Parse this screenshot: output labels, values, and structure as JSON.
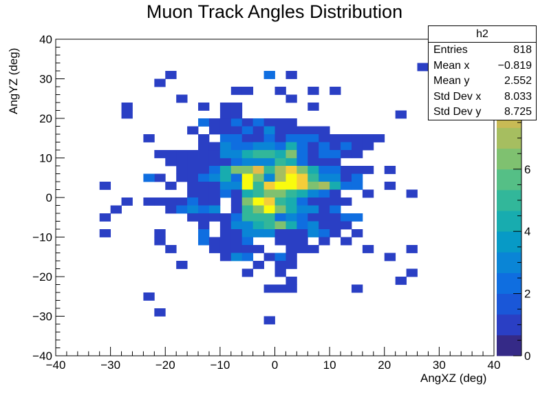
{
  "title": "Muon Track Angles Distribution",
  "stats": {
    "name": "h2",
    "rows": [
      {
        "label": "Entries",
        "value": "818"
      },
      {
        "label": "Mean x",
        "value": "−0.819"
      },
      {
        "label": "Mean y",
        "value": "2.552"
      },
      {
        "label": "Std Dev x",
        "value": "8.033"
      },
      {
        "label": "Std Dev y",
        "value": "8.725"
      }
    ]
  },
  "chart_data": {
    "type": "heatmap",
    "title": "Muon Track Angles Distribution",
    "xlabel": "AngXZ (deg)",
    "ylabel": "AngYZ (deg)",
    "xlim": [
      -40,
      40
    ],
    "ylim": [
      -40,
      40
    ],
    "bin_width": 2,
    "x_ticks": [
      -40,
      -30,
      -20,
      -10,
      0,
      10,
      20,
      30,
      40
    ],
    "y_ticks": [
      -40,
      -30,
      -20,
      -10,
      0,
      10,
      20,
      30,
      40
    ],
    "x_tick_labels": [
      "−40",
      "−30",
      "−20",
      "−10",
      "0",
      "10",
      "20",
      "30",
      "40"
    ],
    "y_tick_labels": [
      "−40",
      "−30",
      "−20",
      "−10",
      "0",
      "10",
      "20",
      "30",
      "40"
    ],
    "z_range": [
      0,
      10
    ],
    "z_ticks": [
      0,
      2,
      4,
      6,
      8
    ],
    "z_tick_labels": [
      "0",
      "2",
      "4",
      "6",
      "8"
    ],
    "palette": [
      "#352a87",
      "#2a3fc4",
      "#1a57d8",
      "#0f6ee0",
      "#0a85d6",
      "#079ac6",
      "#18acaf",
      "#32b79a",
      "#55bf86",
      "#7fc170",
      "#a6be60",
      "#c8ba55",
      "#e4bb48",
      "#f5cd3a",
      "#f9fb0e"
    ],
    "cells": [
      [
        -21,
        29,
        1
      ],
      [
        -19,
        31,
        1
      ],
      [
        -27,
        23,
        1
      ],
      [
        -27,
        21,
        1
      ],
      [
        -27,
        -1,
        1
      ],
      [
        -29,
        -3,
        1
      ],
      [
        -31,
        -5,
        1
      ],
      [
        -31,
        -9,
        1
      ],
      [
        -23,
        15,
        1
      ],
      [
        -19,
        3,
        1
      ],
      [
        -21,
        5,
        1
      ],
      [
        -21,
        -9,
        1
      ],
      [
        -21,
        -11,
        1
      ],
      [
        -19,
        -13,
        1
      ],
      [
        -17,
        -17,
        1
      ],
      [
        -15,
        17,
        1
      ],
      [
        -13,
        15,
        1
      ],
      [
        -13,
        13,
        1
      ],
      [
        -11,
        13,
        1
      ],
      [
        -13,
        11,
        1
      ],
      [
        -11,
        11,
        1
      ],
      [
        -9,
        11,
        2
      ],
      [
        -15,
        11,
        1
      ],
      [
        -17,
        11,
        1
      ],
      [
        -17,
        9,
        1
      ],
      [
        -15,
        9,
        1
      ],
      [
        -13,
        9,
        1
      ],
      [
        -11,
        9,
        1
      ],
      [
        -9,
        9,
        1
      ],
      [
        -7,
        9,
        2
      ],
      [
        -5,
        9,
        3
      ],
      [
        -3,
        9,
        3
      ],
      [
        -1,
        9,
        3
      ],
      [
        1,
        9,
        5
      ],
      [
        3,
        9,
        4
      ],
      [
        5,
        9,
        2
      ],
      [
        7,
        9,
        1
      ],
      [
        9,
        9,
        1
      ],
      [
        11,
        9,
        1
      ],
      [
        -13,
        19,
        2
      ],
      [
        -11,
        19,
        1
      ],
      [
        -9,
        19,
        1
      ],
      [
        -7,
        19,
        2
      ],
      [
        -5,
        19,
        1
      ],
      [
        -3,
        19,
        2
      ],
      [
        -1,
        19,
        1
      ],
      [
        1,
        19,
        1
      ],
      [
        3,
        19,
        1
      ],
      [
        -11,
        17,
        1
      ],
      [
        -9,
        17,
        1
      ],
      [
        -7,
        17,
        1
      ],
      [
        -5,
        17,
        2
      ],
      [
        -3,
        17,
        1
      ],
      [
        -1,
        17,
        3
      ],
      [
        1,
        17,
        1
      ],
      [
        3,
        17,
        1
      ],
      [
        5,
        17,
        1
      ],
      [
        7,
        17,
        1
      ],
      [
        9,
        17,
        1
      ],
      [
        -9,
        15,
        2
      ],
      [
        -7,
        15,
        2
      ],
      [
        -5,
        15,
        1
      ],
      [
        -3,
        15,
        1
      ],
      [
        -1,
        15,
        2
      ],
      [
        1,
        15,
        1
      ],
      [
        3,
        15,
        2
      ],
      [
        5,
        15,
        2
      ],
      [
        7,
        15,
        2
      ],
      [
        9,
        15,
        1
      ],
      [
        11,
        15,
        1
      ],
      [
        13,
        15,
        1
      ],
      [
        15,
        15,
        1
      ],
      [
        17,
        15,
        1
      ],
      [
        19,
        15,
        1
      ],
      [
        -11,
        13,
        1
      ],
      [
        -9,
        13,
        3
      ],
      [
        -7,
        13,
        2
      ],
      [
        -5,
        13,
        2
      ],
      [
        -3,
        13,
        3
      ],
      [
        -1,
        13,
        3
      ],
      [
        1,
        13,
        2
      ],
      [
        3,
        13,
        4
      ],
      [
        5,
        13,
        2
      ],
      [
        7,
        13,
        1
      ],
      [
        9,
        13,
        2
      ],
      [
        11,
        13,
        1
      ],
      [
        13,
        13,
        2
      ],
      [
        15,
        13,
        1
      ],
      [
        17,
        13,
        1
      ],
      [
        -9,
        11,
        3
      ],
      [
        -7,
        11,
        3
      ],
      [
        -5,
        11,
        4
      ],
      [
        -3,
        11,
        5
      ],
      [
        -1,
        11,
        5
      ],
      [
        1,
        11,
        4
      ],
      [
        3,
        11,
        6
      ],
      [
        5,
        11,
        2
      ],
      [
        7,
        11,
        1
      ],
      [
        9,
        11,
        2
      ],
      [
        11,
        11,
        2
      ],
      [
        13,
        11,
        1
      ],
      [
        15,
        11,
        1
      ],
      [
        -19,
        9,
        1
      ],
      [
        -19,
        11,
        1
      ],
      [
        -21,
        11,
        1
      ],
      [
        -17,
        7,
        1
      ],
      [
        -15,
        7,
        1
      ],
      [
        -13,
        7,
        1
      ],
      [
        -11,
        7,
        2
      ],
      [
        -9,
        7,
        4
      ],
      [
        -7,
        7,
        6
      ],
      [
        -5,
        7,
        6
      ],
      [
        -3,
        7,
        8
      ],
      [
        -1,
        7,
        5
      ],
      [
        1,
        7,
        7
      ],
      [
        3,
        7,
        9
      ],
      [
        5,
        7,
        6
      ],
      [
        7,
        7,
        4
      ],
      [
        9,
        7,
        2
      ],
      [
        11,
        7,
        2
      ],
      [
        13,
        7,
        1
      ],
      [
        15,
        7,
        1
      ],
      [
        17,
        7,
        1
      ],
      [
        21,
        7,
        1
      ],
      [
        -23,
        5,
        2
      ],
      [
        -17,
        5,
        1
      ],
      [
        -15,
        5,
        1
      ],
      [
        -13,
        5,
        2
      ],
      [
        -11,
        5,
        3
      ],
      [
        -9,
        5,
        4
      ],
      [
        -7,
        5,
        2
      ],
      [
        -5,
        5,
        14
      ],
      [
        -3,
        5,
        6
      ],
      [
        -1,
        5,
        3
      ],
      [
        1,
        5,
        7
      ],
      [
        3,
        5,
        10
      ],
      [
        5,
        5,
        9
      ],
      [
        7,
        5,
        5
      ],
      [
        9,
        5,
        3
      ],
      [
        11,
        5,
        3
      ],
      [
        13,
        5,
        1
      ],
      [
        15,
        5,
        2
      ],
      [
        -31,
        3,
        1
      ],
      [
        -15,
        3,
        1
      ],
      [
        -13,
        3,
        1
      ],
      [
        -11,
        3,
        1
      ],
      [
        -9,
        3,
        3
      ],
      [
        -7,
        3,
        3
      ],
      [
        -5,
        3,
        14
      ],
      [
        -3,
        3,
        5
      ],
      [
        -1,
        3,
        9
      ],
      [
        1,
        3,
        10
      ],
      [
        3,
        3,
        10
      ],
      [
        5,
        3,
        9
      ],
      [
        7,
        3,
        6
      ],
      [
        9,
        3,
        7
      ],
      [
        11,
        3,
        4
      ],
      [
        13,
        3,
        2
      ],
      [
        15,
        3,
        2
      ],
      [
        21,
        3,
        1
      ],
      [
        -15,
        1,
        1
      ],
      [
        -13,
        1,
        1
      ],
      [
        -11,
        1,
        1
      ],
      [
        -9,
        1,
        2
      ],
      [
        -7,
        1,
        1
      ],
      [
        -5,
        1,
        4
      ],
      [
        -3,
        1,
        5
      ],
      [
        -1,
        1,
        6
      ],
      [
        1,
        1,
        6
      ],
      [
        3,
        1,
        5
      ],
      [
        5,
        1,
        4
      ],
      [
        7,
        1,
        3
      ],
      [
        9,
        1,
        2
      ],
      [
        11,
        1,
        1
      ],
      [
        17,
        1,
        1
      ],
      [
        25,
        1,
        1
      ],
      [
        -23,
        -1,
        1
      ],
      [
        -21,
        -1,
        1
      ],
      [
        -19,
        -1,
        1
      ],
      [
        -17,
        -1,
        1
      ],
      [
        -15,
        -1,
        2
      ],
      [
        -13,
        -1,
        1
      ],
      [
        -11,
        -1,
        1
      ],
      [
        -7,
        -1,
        1
      ],
      [
        -5,
        -1,
        6
      ],
      [
        -3,
        -1,
        10
      ],
      [
        -1,
        -1,
        9
      ],
      [
        1,
        -1,
        5
      ],
      [
        3,
        -1,
        4
      ],
      [
        5,
        -1,
        2
      ],
      [
        7,
        -1,
        1
      ],
      [
        9,
        -1,
        1
      ],
      [
        11,
        -1,
        1
      ],
      [
        13,
        -1,
        1
      ],
      [
        -19,
        -3,
        1
      ],
      [
        -17,
        -3,
        2
      ],
      [
        -15,
        -3,
        3
      ],
      [
        -13,
        -3,
        2
      ],
      [
        -11,
        -3,
        3
      ],
      [
        -7,
        -3,
        1
      ],
      [
        -5,
        -3,
        5
      ],
      [
        -3,
        -3,
        6
      ],
      [
        -1,
        -3,
        14
      ],
      [
        1,
        -3,
        6
      ],
      [
        3,
        -3,
        4
      ],
      [
        5,
        -3,
        3
      ],
      [
        7,
        -3,
        3
      ],
      [
        9,
        -3,
        1
      ],
      [
        11,
        -3,
        2
      ],
      [
        -15,
        -5,
        1
      ],
      [
        -13,
        -5,
        1
      ],
      [
        -11,
        -5,
        1
      ],
      [
        -9,
        -5,
        1
      ],
      [
        -7,
        -5,
        2
      ],
      [
        -5,
        -5,
        5
      ],
      [
        -3,
        -5,
        5
      ],
      [
        -1,
        -5,
        5
      ],
      [
        1,
        -5,
        2
      ],
      [
        3,
        -5,
        3
      ],
      [
        5,
        -5,
        2
      ],
      [
        7,
        -5,
        1
      ],
      [
        9,
        -5,
        1
      ],
      [
        11,
        -5,
        1
      ],
      [
        13,
        -5,
        2
      ],
      [
        15,
        -5,
        2
      ],
      [
        -13,
        -7,
        1
      ],
      [
        -9,
        -7,
        1
      ],
      [
        -7,
        -7,
        3
      ],
      [
        -5,
        -7,
        3
      ],
      [
        -3,
        -7,
        4
      ],
      [
        -1,
        -7,
        5
      ],
      [
        1,
        -7,
        6
      ],
      [
        3,
        -7,
        4
      ],
      [
        5,
        -7,
        2
      ],
      [
        7,
        -7,
        3
      ],
      [
        9,
        -7,
        1
      ],
      [
        11,
        -7,
        1
      ],
      [
        13,
        -7,
        1
      ],
      [
        -13,
        -9,
        2
      ],
      [
        -9,
        -9,
        1
      ],
      [
        -7,
        -9,
        1
      ],
      [
        -5,
        -9,
        3
      ],
      [
        -3,
        -9,
        3
      ],
      [
        -1,
        -9,
        3
      ],
      [
        1,
        -9,
        1
      ],
      [
        3,
        -9,
        1
      ],
      [
        5,
        -9,
        1
      ],
      [
        7,
        -9,
        3
      ],
      [
        9,
        -9,
        2
      ],
      [
        11,
        -9,
        1
      ],
      [
        15,
        -9,
        1
      ],
      [
        -13,
        -11,
        2
      ],
      [
        -11,
        -11,
        1
      ],
      [
        -9,
        -11,
        1
      ],
      [
        -7,
        -11,
        1
      ],
      [
        -5,
        -11,
        2
      ],
      [
        1,
        -11,
        1
      ],
      [
        3,
        -11,
        1
      ],
      [
        5,
        -11,
        1
      ],
      [
        9,
        -11,
        1
      ],
      [
        13,
        -11,
        1
      ],
      [
        -11,
        -13,
        1
      ],
      [
        -9,
        -13,
        1
      ],
      [
        -7,
        -13,
        1
      ],
      [
        -5,
        -13,
        1
      ],
      [
        -3,
        -13,
        1
      ],
      [
        3,
        -13,
        1
      ],
      [
        5,
        -13,
        1
      ],
      [
        7,
        -13,
        1
      ],
      [
        17,
        -13,
        1
      ],
      [
        25,
        -13,
        1
      ],
      [
        -9,
        -15,
        1
      ],
      [
        -7,
        -15,
        3
      ],
      [
        -5,
        -15,
        2
      ],
      [
        -1,
        -15,
        1
      ],
      [
        1,
        -15,
        2
      ],
      [
        3,
        -15,
        1
      ],
      [
        21,
        -15,
        1
      ],
      [
        -3,
        -17,
        1
      ],
      [
        1,
        -17,
        1
      ],
      [
        3,
        -17,
        1
      ],
      [
        -5,
        -19,
        1
      ],
      [
        1,
        -19,
        1
      ],
      [
        25,
        -19,
        1
      ],
      [
        3,
        -21,
        1
      ],
      [
        23,
        -21,
        1
      ],
      [
        -1,
        -23,
        1
      ],
      [
        1,
        -23,
        1
      ],
      [
        3,
        -23,
        1
      ],
      [
        15,
        -23,
        1
      ],
      [
        -23,
        -25,
        1
      ],
      [
        -21,
        -29,
        1
      ],
      [
        -1,
        -31,
        1
      ],
      [
        -1,
        31,
        2
      ],
      [
        3,
        31,
        1
      ],
      [
        -7,
        27,
        1
      ],
      [
        -5,
        27,
        1
      ],
      [
        1,
        27,
        1
      ],
      [
        7,
        27,
        1
      ],
      [
        11,
        27,
        1
      ],
      [
        3,
        25,
        1
      ],
      [
        -17,
        25,
        1
      ],
      [
        -13,
        23,
        1
      ],
      [
        -9,
        23,
        1
      ],
      [
        -7,
        23,
        1
      ],
      [
        -9,
        21,
        1
      ],
      [
        -7,
        21,
        1
      ],
      [
        7,
        23,
        1
      ],
      [
        23,
        21,
        1
      ],
      [
        27,
        33,
        1
      ],
      [
        29,
        33,
        1
      ],
      [
        31,
        35,
        1
      ],
      [
        33,
        35,
        1
      ],
      [
        33,
        27,
        1
      ],
      [
        33,
        25,
        1
      ]
    ]
  }
}
